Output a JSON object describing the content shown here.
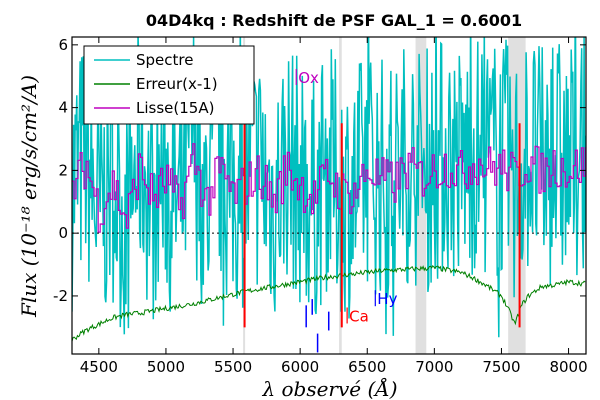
{
  "chart_data": {
    "type": "line",
    "title": "04D4kq : Redshift de PSF GAL_1 = 0.6001",
    "xlabel": "λ observé (Å)",
    "ylabel": "Flux (10⁻¹⁸ erg/s/cm²/A)",
    "xlim": [
      4300,
      8130
    ],
    "ylim": [
      -3.85,
      6.25
    ],
    "xticks": [
      4500,
      5000,
      5500,
      6000,
      6500,
      7000,
      7500,
      8000
    ],
    "yticks": [
      -2,
      0,
      2,
      4,
      6
    ],
    "grid": false,
    "legend_position": "top-left",
    "legend": [
      "Spectre",
      "Erreur(x-1)",
      "Lisse(15A)"
    ],
    "colors": {
      "spectre": "#00bfbf",
      "erreur": "#008000",
      "lisse": "#bf00bf",
      "emission": "#ff0000",
      "absorption": "#0000ff",
      "band": "#e0e0e0"
    },
    "series": [
      {
        "name": "Spectre",
        "color": "#00bfbf",
        "x": [
          4300,
          4400,
          4500,
          4600,
          4700,
          4800,
          4900,
          5000,
          5100,
          5200,
          5300,
          5400,
          5500,
          5600,
          5700,
          5800,
          5900,
          6000,
          6100,
          6200,
          6300,
          6400,
          6500,
          6600,
          6700,
          6800,
          6900,
          7000,
          7100,
          7200,
          7300,
          7400,
          7500,
          7600,
          7700,
          7800,
          7900,
          8000,
          8100
        ],
        "y": [
          1.5,
          2.5,
          0.5,
          1.8,
          0.2,
          2.6,
          1.0,
          1.9,
          0.6,
          3.2,
          0.8,
          2.3,
          1.1,
          1.7,
          2.1,
          0.9,
          2.4,
          1.6,
          1.0,
          2.1,
          1.4,
          1.2,
          2.2,
          1.8,
          1.6,
          2.4,
          1.9,
          2.2,
          2.5,
          2.1,
          2.6,
          2.3,
          2.4,
          1.9,
          2.6,
          2.0,
          2.4,
          2.1,
          2.5
        ],
        "scatter": 2.5
      },
      {
        "name": "Erreur(x-1)",
        "color": "#008000",
        "x": [
          4300,
          4400,
          4500,
          4600,
          4700,
          4800,
          5000,
          5200,
          5400,
          5600,
          5800,
          6000,
          6200,
          6400,
          6600,
          6800,
          7000,
          7200,
          7300,
          7400,
          7500,
          7550,
          7600,
          7650,
          7700,
          7800,
          7900,
          8000,
          8100
        ],
        "y": [
          -3.4,
          -3.1,
          -2.9,
          -2.7,
          -2.6,
          -2.55,
          -2.4,
          -2.25,
          -2.05,
          -1.85,
          -1.7,
          -1.55,
          -1.4,
          -1.3,
          -1.2,
          -1.15,
          -1.1,
          -1.25,
          -1.45,
          -1.7,
          -2.0,
          -2.4,
          -2.9,
          -2.3,
          -2.0,
          -1.7,
          -1.65,
          -1.55,
          -1.6
        ]
      },
      {
        "name": "Lisse(15A)",
        "color": "#bf00bf",
        "x": [
          4300,
          4400,
          4500,
          4600,
          4700,
          4800,
          4900,
          5000,
          5100,
          5200,
          5300,
          5400,
          5500,
          5600,
          5700,
          5800,
          5900,
          6000,
          6100,
          6200,
          6300,
          6400,
          6500,
          6600,
          6700,
          6800,
          6900,
          7000,
          7100,
          7200,
          7300,
          7400,
          7500,
          7600,
          7700,
          7800,
          7900,
          8000,
          8100
        ],
        "y": [
          1.4,
          2.2,
          0.7,
          1.6,
          0.4,
          2.1,
          1.1,
          1.7,
          0.8,
          2.4,
          1.0,
          2.0,
          1.2,
          1.6,
          1.9,
          1.0,
          2.1,
          1.5,
          1.1,
          1.9,
          1.3,
          1.3,
          2.0,
          1.7,
          1.6,
          2.1,
          1.8,
          2.0,
          2.2,
          1.9,
          2.3,
          2.1,
          2.1,
          1.8,
          2.3,
          1.9,
          2.2,
          2.0,
          2.2
        ],
        "scatter": 0.5
      }
    ],
    "zero_line": 0,
    "shaded_bands": [
      [
        5575,
        5590
      ],
      [
        6290,
        6310
      ],
      [
        6860,
        6940
      ],
      [
        7550,
        7680
      ]
    ],
    "emission_lines": [
      {
        "label": "Ox",
        "x": 5971,
        "color": "#bf00bf"
      },
      {
        "label": "Ca",
        "x": 6350,
        "color": "#ff0000"
      },
      {
        "label": "Hy",
        "x": 6560,
        "color": "#0000ff"
      }
    ],
    "red_markers": [
      5586,
      6310,
      7635
    ],
    "blue_markers": [
      6045,
      6090,
      6130,
      6213
    ]
  }
}
